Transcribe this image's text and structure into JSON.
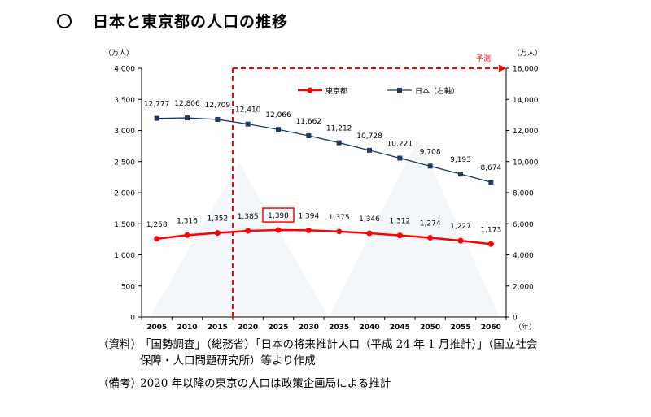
{
  "title": "日本と東京都の人口の推移",
  "chart_data": {
    "type": "line",
    "categories": [
      "2005",
      "2010",
      "2015",
      "2020",
      "2025",
      "2030",
      "2035",
      "2040",
      "2045",
      "2050",
      "2055",
      "2060"
    ],
    "series": [
      {
        "name": "東京都",
        "axis": "left",
        "color": "#ff0000",
        "values": [
          1258,
          1316,
          1352,
          1385,
          1398,
          1394,
          1375,
          1346,
          1312,
          1274,
          1227,
          1173
        ],
        "labels": [
          "1,258",
          "1,316",
          "1,352",
          "1,385",
          "1,398",
          "1,394",
          "1,375",
          "1,346",
          "1,312",
          "1,274",
          "1,227",
          "1,173"
        ]
      },
      {
        "name": "日本（右軸）",
        "axis": "right",
        "color": "#1f3864",
        "values": [
          12777,
          12806,
          12709,
          12410,
          12066,
          11662,
          11212,
          10728,
          10221,
          9708,
          9193,
          8674
        ],
        "labels": [
          "12,777",
          "12,806",
          "12,709",
          "12,410",
          "12,066",
          "11,662",
          "11,212",
          "10,728",
          "10,221",
          "9,708",
          "9,193",
          "8,674"
        ]
      }
    ],
    "left_axis": {
      "unit": "（万人）",
      "ylim": [
        0,
        4000
      ],
      "ticks": [
        0,
        500,
        1000,
        1500,
        2000,
        2500,
        3000,
        3500,
        4000
      ],
      "tick_labels": [
        "0",
        "500",
        "1,000",
        "1,500",
        "2,000",
        "2,500",
        "3,000",
        "3,500",
        "4,000"
      ]
    },
    "right_axis": {
      "unit": "（万人）",
      "ylim": [
        0,
        16000
      ],
      "ticks": [
        0,
        2000,
        4000,
        6000,
        8000,
        10000,
        12000,
        14000,
        16000
      ],
      "tick_labels": [
        "0",
        "2,000",
        "4,000",
        "6,000",
        "8,000",
        "10,000",
        "12,000",
        "14,000",
        "16,000"
      ]
    },
    "x_unit": "（年）",
    "forecast_label": "予測",
    "forecast_start": "2020",
    "highlight": {
      "series": "東京都",
      "category": "2025"
    },
    "legend_position": "top",
    "grid": false
  },
  "notes": {
    "source_label": "（資料）",
    "source_line1": "「国勢調査」（総務省）「日本の将来推計人口（平成 24 年 1 月推計）」（国立社会",
    "source_line2": "保障・人口問題研究所）等より作成",
    "remarks_label": "（備考）",
    "remarks_text": "2020 年以降の東京の人口は政策企画局による推計"
  }
}
